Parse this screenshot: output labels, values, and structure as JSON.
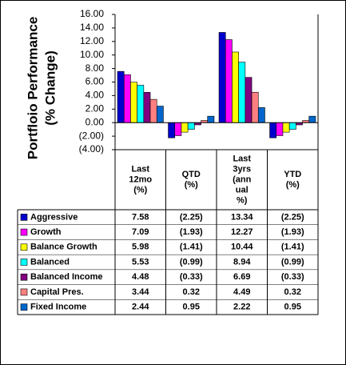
{
  "chart_data": {
    "type": "bar",
    "y_label_lines": [
      "Portfloio Performance",
      "(% Change)"
    ],
    "categories": [
      [
        "Last",
        "12mo",
        "(%)"
      ],
      [
        "QTD",
        "(%)"
      ],
      [
        "Last",
        "3yrs",
        "(ann",
        "ual",
        "%)"
      ],
      [
        "YTD",
        "(%)"
      ]
    ],
    "series": [
      {
        "name": "Aggressive",
        "color": "#0000cc",
        "values": [
          7.58,
          -2.25,
          13.34,
          -2.25
        ],
        "value_labels": [
          "7.58",
          "(2.25)",
          "13.34",
          "(2.25)"
        ]
      },
      {
        "name": "Growth",
        "color": "#ff00ff",
        "values": [
          7.09,
          -1.93,
          12.27,
          -1.93
        ],
        "value_labels": [
          "7.09",
          "(1.93)",
          "12.27",
          "(1.93)"
        ]
      },
      {
        "name": "Balance Growth",
        "color": "#ffff00",
        "values": [
          5.98,
          -1.41,
          10.44,
          -1.41
        ],
        "value_labels": [
          "5.98",
          "(1.41)",
          "10.44",
          "(1.41)"
        ]
      },
      {
        "name": "Balanced",
        "color": "#00ffff",
        "values": [
          5.53,
          -0.99,
          8.94,
          -0.99
        ],
        "value_labels": [
          "5.53",
          "(0.99)",
          "8.94",
          "(0.99)"
        ]
      },
      {
        "name": "Balanced Income",
        "color": "#800080",
        "values": [
          4.48,
          -0.33,
          6.69,
          -0.33
        ],
        "value_labels": [
          "4.48",
          "(0.33)",
          "6.69",
          "(0.33)"
        ]
      },
      {
        "name": "Capital Pres.",
        "color": "#ff8080",
        "values": [
          3.44,
          0.32,
          4.49,
          0.32
        ],
        "value_labels": [
          "3.44",
          "0.32",
          "4.49",
          "0.32"
        ]
      },
      {
        "name": "Fixed Income",
        "color": "#0066cc",
        "values": [
          2.44,
          0.95,
          2.22,
          0.95
        ],
        "value_labels": [
          "2.44",
          "0.95",
          "2.22",
          "0.95"
        ]
      }
    ],
    "ylim": [
      -4,
      16
    ],
    "yticks": [
      {
        "value": -4,
        "label": "(4.00)"
      },
      {
        "value": -2,
        "label": "(2.00)"
      },
      {
        "value": 0,
        "label": "0.00"
      },
      {
        "value": 2,
        "label": "2.00"
      },
      {
        "value": 4,
        "label": "4.00"
      },
      {
        "value": 6,
        "label": "6.00"
      },
      {
        "value": 8,
        "label": "8.00"
      },
      {
        "value": 10,
        "label": "10.00"
      },
      {
        "value": 12,
        "label": "12.00"
      },
      {
        "value": 14,
        "label": "14.00"
      },
      {
        "value": 16,
        "label": "16.00"
      }
    ],
    "grid": false
  }
}
